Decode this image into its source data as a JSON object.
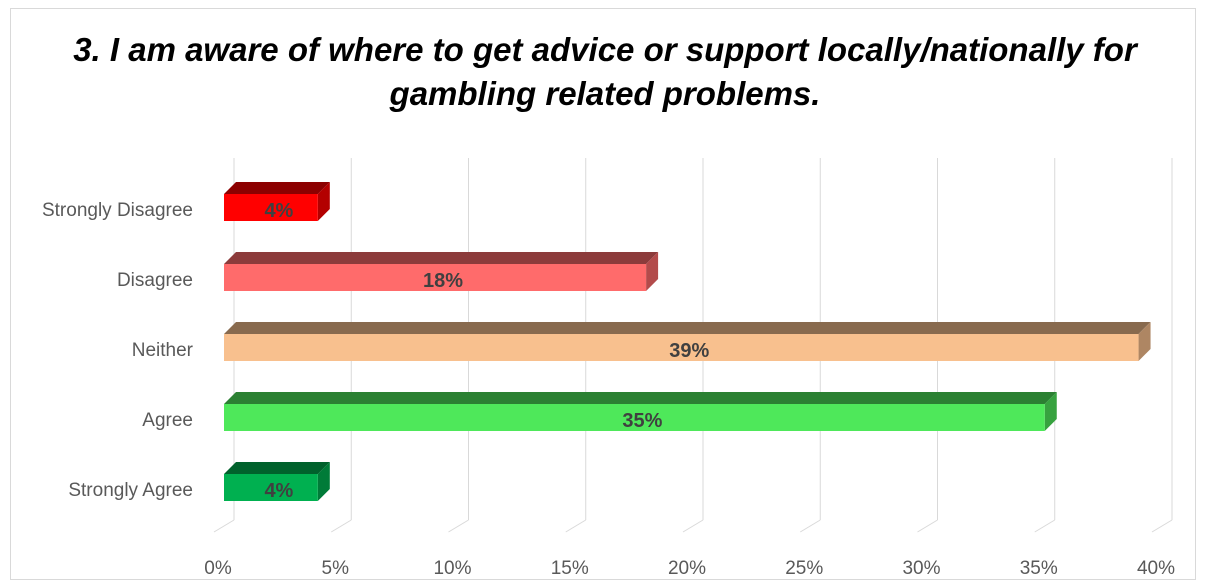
{
  "chart_data": {
    "type": "bar",
    "orientation": "horizontal",
    "style": "3d",
    "title": "3. I am aware of where to get advice or support locally/nationally for gambling related problems.",
    "categories": [
      "Strongly Disagree",
      "Disagree",
      "Neither",
      "Agree",
      "Strongly Agree"
    ],
    "values": [
      4,
      18,
      39,
      35,
      4
    ],
    "data_labels": [
      "4%",
      "18%",
      "39%",
      "35%",
      "4%"
    ],
    "colors": [
      "#ff0000",
      "#ff6b6b",
      "#f8c08e",
      "#4ee85a",
      "#00b050"
    ],
    "xlim": [
      0,
      40
    ],
    "x_ticks": [
      "0%",
      "5%",
      "10%",
      "15%",
      "20%",
      "25%",
      "30%",
      "35%",
      "40%"
    ],
    "grid": true,
    "legend": "none"
  }
}
